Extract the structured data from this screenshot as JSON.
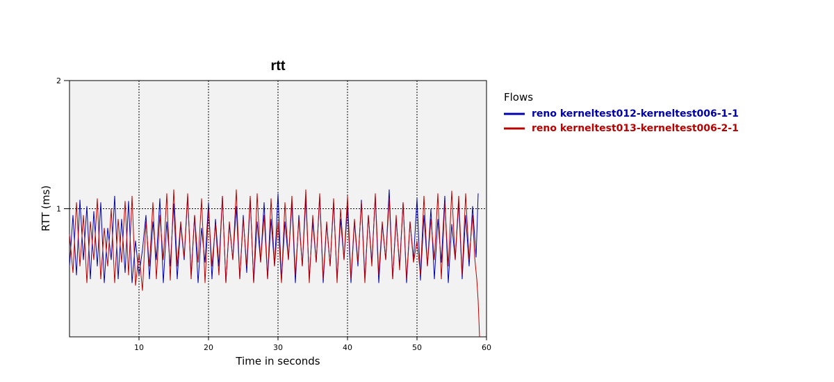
{
  "chart_data": {
    "type": "line",
    "title": "rtt",
    "xlabel": "Time in seconds",
    "ylabel": "RTT (ms)",
    "xlim": [
      0,
      60
    ],
    "ylim": [
      0,
      2
    ],
    "x_ticks": [
      10,
      20,
      30,
      40,
      50,
      60
    ],
    "y_ticks": [
      1,
      2
    ],
    "grid": true,
    "legend": {
      "title": "Flows",
      "placement": "right"
    },
    "series": [
      {
        "name": "reno kerneltest012-kerneltest006-1-1",
        "color": "#0000aa",
        "x": [
          0.0,
          0.5,
          1.0,
          1.5,
          2.0,
          2.5,
          3.0,
          3.5,
          4.0,
          4.5,
          5.0,
          5.5,
          6.0,
          6.5,
          7.0,
          7.5,
          8.0,
          8.5,
          9.0,
          9.5,
          10.0,
          10.5,
          11.0,
          11.5,
          12.0,
          12.5,
          13.0,
          13.5,
          14.0,
          14.5,
          15.0,
          15.5,
          16.0,
          16.5,
          17.0,
          17.5,
          18.0,
          18.5,
          19.0,
          19.5,
          20.0,
          20.5,
          21.0,
          21.5,
          22.0,
          22.5,
          23.0,
          23.5,
          24.0,
          24.5,
          25.0,
          25.5,
          26.0,
          26.5,
          27.0,
          27.5,
          28.0,
          28.5,
          29.0,
          29.5,
          30.0,
          30.5,
          31.0,
          31.5,
          32.0,
          32.5,
          33.0,
          33.5,
          34.0,
          34.5,
          35.0,
          35.5,
          36.0,
          36.5,
          37.0,
          37.5,
          38.0,
          38.5,
          39.0,
          39.5,
          40.0,
          40.5,
          41.0,
          41.5,
          42.0,
          42.5,
          43.0,
          43.5,
          44.0,
          44.5,
          45.0,
          45.5,
          46.0,
          46.5,
          47.0,
          47.5,
          48.0,
          48.5,
          49.0,
          49.5,
          50.0,
          50.5,
          51.0,
          51.5,
          52.0,
          52.5,
          53.0,
          53.5,
          54.0,
          54.5,
          55.0,
          55.5,
          56.0,
          56.5,
          57.0,
          57.5,
          58.0,
          58.5,
          58.8
        ],
        "y": [
          0.55,
          0.95,
          0.48,
          1.07,
          0.6,
          1.02,
          0.45,
          0.98,
          0.55,
          1.05,
          0.42,
          0.85,
          0.6,
          1.1,
          0.45,
          0.92,
          0.5,
          1.06,
          0.42,
          0.75,
          0.48,
          0.68,
          0.95,
          0.45,
          0.9,
          0.6,
          1.08,
          0.42,
          0.9,
          0.55,
          1.04,
          0.45,
          0.88,
          0.6,
          1.1,
          0.48,
          0.95,
          0.42,
          0.85,
          0.58,
          1.05,
          0.45,
          0.92,
          0.55,
          1.1,
          0.42,
          0.88,
          0.6,
          1.02,
          0.45,
          0.95,
          0.5,
          1.08,
          0.42,
          0.9,
          0.58,
          1.05,
          0.45,
          0.92,
          0.55,
          1.12,
          0.44,
          0.9,
          0.6,
          1.05,
          0.42,
          0.95,
          0.55,
          1.08,
          0.45,
          0.9,
          0.58,
          1.1,
          0.42,
          0.88,
          0.55,
          1.05,
          0.45,
          0.92,
          0.6,
          1.02,
          0.42,
          0.9,
          0.55,
          1.07,
          0.45,
          0.95,
          0.58,
          1.1,
          0.42,
          0.88,
          0.6,
          1.15,
          0.45,
          0.92,
          0.55,
          1.05,
          0.42,
          0.9,
          0.6,
          1.08,
          0.44,
          0.95,
          0.55,
          1.0,
          0.45,
          0.92,
          0.58,
          1.1,
          0.42,
          0.88,
          0.6,
          1.05,
          0.45,
          0.95,
          0.55,
          1.02,
          0.62,
          1.12
        ]
      },
      {
        "name": "reno kerneltest013-kerneltest006-2-1",
        "color": "#bb0000",
        "x": [
          0.0,
          0.5,
          1.0,
          1.5,
          2.0,
          2.5,
          3.0,
          3.5,
          4.0,
          4.5,
          5.0,
          5.5,
          6.0,
          6.5,
          7.0,
          7.5,
          8.0,
          8.5,
          9.0,
          9.5,
          10.0,
          10.5,
          11.0,
          11.5,
          12.0,
          12.5,
          13.0,
          13.5,
          14.0,
          14.5,
          15.0,
          15.5,
          16.0,
          16.5,
          17.0,
          17.5,
          18.0,
          18.5,
          19.0,
          19.5,
          20.0,
          20.5,
          21.0,
          21.5,
          22.0,
          22.5,
          23.0,
          23.5,
          24.0,
          24.5,
          25.0,
          25.5,
          26.0,
          26.5,
          27.0,
          27.5,
          28.0,
          28.5,
          29.0,
          29.5,
          30.0,
          30.5,
          31.0,
          31.5,
          32.0,
          32.5,
          33.0,
          33.5,
          34.0,
          34.5,
          35.0,
          35.5,
          36.0,
          36.5,
          37.0,
          37.5,
          38.0,
          38.5,
          39.0,
          39.5,
          40.0,
          40.5,
          41.0,
          41.5,
          42.0,
          42.5,
          43.0,
          43.5,
          44.0,
          44.5,
          45.0,
          45.5,
          46.0,
          46.5,
          47.0,
          47.5,
          48.0,
          48.5,
          49.0,
          49.5,
          50.0,
          50.5,
          51.0,
          51.5,
          52.0,
          52.5,
          53.0,
          53.5,
          54.0,
          54.5,
          55.0,
          55.5,
          56.0,
          56.5,
          57.0,
          57.5,
          58.0,
          58.3,
          58.6,
          58.8,
          59.0
        ],
        "y": [
          0.8,
          0.5,
          1.05,
          0.55,
          0.95,
          0.42,
          0.9,
          0.6,
          1.08,
          0.45,
          0.85,
          0.55,
          1.0,
          0.42,
          0.92,
          0.58,
          1.06,
          0.48,
          1.1,
          0.4,
          0.65,
          0.36,
          0.9,
          0.55,
          1.05,
          0.45,
          0.95,
          0.6,
          1.12,
          0.44,
          1.15,
          0.55,
          0.9,
          0.62,
          1.12,
          0.45,
          0.95,
          0.58,
          1.08,
          0.42,
          1.0,
          0.55,
          0.88,
          0.48,
          1.1,
          0.42,
          0.9,
          0.6,
          1.15,
          0.45,
          0.92,
          0.55,
          1.1,
          0.42,
          1.12,
          0.58,
          0.95,
          0.45,
          1.08,
          0.55,
          0.9,
          0.42,
          1.05,
          0.6,
          1.1,
          0.48,
          0.92,
          0.55,
          1.15,
          0.42,
          0.95,
          0.58,
          1.12,
          0.45,
          0.9,
          0.55,
          1.08,
          0.42,
          1.0,
          0.6,
          1.1,
          0.45,
          0.92,
          0.58,
          1.05,
          0.42,
          0.95,
          0.55,
          1.12,
          0.48,
          0.9,
          0.6,
          1.08,
          0.45,
          0.95,
          0.52,
          1.05,
          0.45,
          0.9,
          0.58,
          0.75,
          0.48,
          1.1,
          0.55,
          0.92,
          0.6,
          1.12,
          0.45,
          1.05,
          0.55,
          1.14,
          0.6,
          1.1,
          0.48,
          1.12,
          0.6,
          0.95,
          0.62,
          0.45,
          0.28,
          0.0
        ]
      }
    ]
  }
}
